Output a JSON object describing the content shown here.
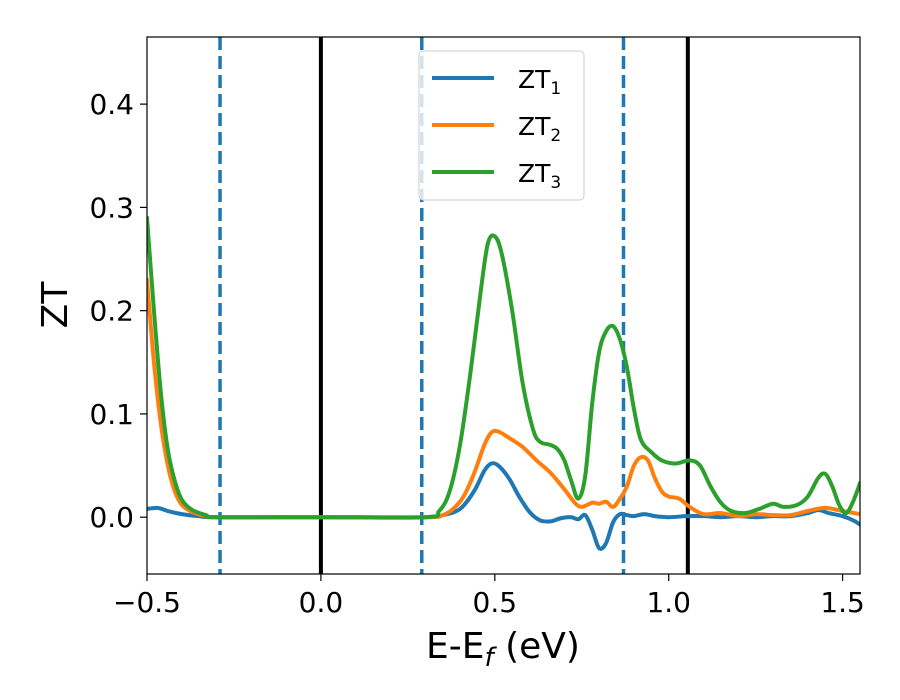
{
  "chart_data": {
    "type": "line",
    "xlabel": "E-E",
    "xlabel_sub": "f",
    "xlabel_unit": " (eV)",
    "ylabel": "ZT",
    "xlim": [
      -0.5,
      1.55
    ],
    "ylim": [
      -0.055,
      0.465
    ],
    "xticks": [
      -0.5,
      0.0,
      0.5,
      1.0,
      1.5
    ],
    "xtick_labels": [
      "−0.5",
      "0.0",
      "0.5",
      "1.0",
      "1.5"
    ],
    "yticks": [
      0.0,
      0.1,
      0.2,
      0.3,
      0.4
    ],
    "ytick_labels": [
      "0.0",
      "0.1",
      "0.2",
      "0.3",
      "0.4"
    ],
    "legend_position": "top-center",
    "vertical_lines": [
      {
        "x": -0.29,
        "style": "dashed",
        "color": "#1f77b4"
      },
      {
        "x": 0.0,
        "style": "solid",
        "color": "#000000"
      },
      {
        "x": 0.29,
        "style": "dashed",
        "color": "#1f77b4"
      },
      {
        "x": 0.87,
        "style": "dashed",
        "color": "#1f77b4"
      },
      {
        "x": 1.055,
        "style": "solid",
        "color": "#000000"
      }
    ],
    "series": [
      {
        "name": "ZT",
        "name_sub": "1",
        "color": "#1f77b4",
        "points": [
          [
            -0.5,
            0.008
          ],
          [
            -0.47,
            0.009
          ],
          [
            -0.44,
            0.006
          ],
          [
            -0.4,
            0.003
          ],
          [
            -0.35,
            0.001
          ],
          [
            -0.3,
            0.0
          ],
          [
            0.0,
            0.0
          ],
          [
            0.3,
            0.0
          ],
          [
            0.35,
            0.002
          ],
          [
            0.4,
            0.008
          ],
          [
            0.44,
            0.025
          ],
          [
            0.47,
            0.045
          ],
          [
            0.49,
            0.052
          ],
          [
            0.51,
            0.05
          ],
          [
            0.54,
            0.038
          ],
          [
            0.57,
            0.02
          ],
          [
            0.6,
            0.005
          ],
          [
            0.63,
            -0.003
          ],
          [
            0.66,
            -0.004
          ],
          [
            0.69,
            -0.001
          ],
          [
            0.72,
            0.0
          ],
          [
            0.74,
            -0.002
          ],
          [
            0.76,
            0.002
          ],
          [
            0.78,
            -0.012
          ],
          [
            0.8,
            -0.03
          ],
          [
            0.82,
            -0.025
          ],
          [
            0.84,
            -0.005
          ],
          [
            0.86,
            0.003
          ],
          [
            0.88,
            0.002
          ],
          [
            0.9,
            0.001
          ],
          [
            0.93,
            0.003
          ],
          [
            0.96,
            0.001
          ],
          [
            1.0,
            0.0
          ],
          [
            1.05,
            0.001
          ],
          [
            1.1,
            0.001
          ],
          [
            1.15,
            0.0
          ],
          [
            1.2,
            0.001
          ],
          [
            1.25,
            0.0
          ],
          [
            1.3,
            0.001
          ],
          [
            1.35,
            0.001
          ],
          [
            1.4,
            0.004
          ],
          [
            1.43,
            0.007
          ],
          [
            1.46,
            0.004
          ],
          [
            1.5,
            0.001
          ],
          [
            1.53,
            -0.003
          ],
          [
            1.55,
            -0.007
          ]
        ]
      },
      {
        "name": "ZT",
        "name_sub": "2",
        "color": "#ff7f0e",
        "points": [
          [
            -0.5,
            0.23
          ],
          [
            -0.48,
            0.15
          ],
          [
            -0.46,
            0.09
          ],
          [
            -0.44,
            0.05
          ],
          [
            -0.42,
            0.025
          ],
          [
            -0.4,
            0.012
          ],
          [
            -0.37,
            0.005
          ],
          [
            -0.33,
            0.001
          ],
          [
            -0.3,
            0.0
          ],
          [
            0.0,
            0.0
          ],
          [
            0.3,
            0.0
          ],
          [
            0.35,
            0.002
          ],
          [
            0.38,
            0.008
          ],
          [
            0.41,
            0.02
          ],
          [
            0.44,
            0.042
          ],
          [
            0.47,
            0.07
          ],
          [
            0.49,
            0.082
          ],
          [
            0.51,
            0.083
          ],
          [
            0.54,
            0.077
          ],
          [
            0.58,
            0.068
          ],
          [
            0.62,
            0.055
          ],
          [
            0.66,
            0.043
          ],
          [
            0.7,
            0.027
          ],
          [
            0.73,
            0.014
          ],
          [
            0.75,
            0.01
          ],
          [
            0.78,
            0.014
          ],
          [
            0.8,
            0.013
          ],
          [
            0.82,
            0.015
          ],
          [
            0.84,
            0.01
          ],
          [
            0.86,
            0.018
          ],
          [
            0.88,
            0.03
          ],
          [
            0.9,
            0.05
          ],
          [
            0.92,
            0.058
          ],
          [
            0.94,
            0.055
          ],
          [
            0.96,
            0.038
          ],
          [
            0.98,
            0.025
          ],
          [
            1.0,
            0.02
          ],
          [
            1.03,
            0.018
          ],
          [
            1.06,
            0.01
          ],
          [
            1.1,
            0.003
          ],
          [
            1.15,
            0.004
          ],
          [
            1.2,
            0.001
          ],
          [
            1.25,
            0.003
          ],
          [
            1.3,
            0.002
          ],
          [
            1.35,
            0.002
          ],
          [
            1.4,
            0.006
          ],
          [
            1.45,
            0.009
          ],
          [
            1.5,
            0.006
          ],
          [
            1.55,
            0.003
          ]
        ]
      },
      {
        "name": "ZT",
        "name_sub": "3",
        "color": "#2ca02c",
        "points": [
          [
            -0.5,
            0.29
          ],
          [
            -0.48,
            0.2
          ],
          [
            -0.46,
            0.12
          ],
          [
            -0.44,
            0.065
          ],
          [
            -0.42,
            0.035
          ],
          [
            -0.4,
            0.017
          ],
          [
            -0.37,
            0.007
          ],
          [
            -0.33,
            0.002
          ],
          [
            -0.3,
            0.0
          ],
          [
            0.0,
            0.0
          ],
          [
            0.3,
            0.0
          ],
          [
            0.34,
            0.006
          ],
          [
            0.37,
            0.025
          ],
          [
            0.4,
            0.07
          ],
          [
            0.43,
            0.14
          ],
          [
            0.46,
            0.22
          ],
          [
            0.48,
            0.265
          ],
          [
            0.5,
            0.272
          ],
          [
            0.52,
            0.255
          ],
          [
            0.55,
            0.2
          ],
          [
            0.58,
            0.13
          ],
          [
            0.61,
            0.085
          ],
          [
            0.63,
            0.073
          ],
          [
            0.66,
            0.07
          ],
          [
            0.68,
            0.066
          ],
          [
            0.7,
            0.055
          ],
          [
            0.72,
            0.035
          ],
          [
            0.74,
            0.018
          ],
          [
            0.76,
            0.04
          ],
          [
            0.78,
            0.11
          ],
          [
            0.8,
            0.16
          ],
          [
            0.82,
            0.18
          ],
          [
            0.84,
            0.185
          ],
          [
            0.86,
            0.172
          ],
          [
            0.88,
            0.145
          ],
          [
            0.9,
            0.105
          ],
          [
            0.92,
            0.075
          ],
          [
            0.95,
            0.063
          ],
          [
            0.98,
            0.055
          ],
          [
            1.02,
            0.052
          ],
          [
            1.06,
            0.055
          ],
          [
            1.09,
            0.05
          ],
          [
            1.12,
            0.03
          ],
          [
            1.15,
            0.014
          ],
          [
            1.18,
            0.006
          ],
          [
            1.22,
            0.004
          ],
          [
            1.26,
            0.008
          ],
          [
            1.3,
            0.013
          ],
          [
            1.33,
            0.01
          ],
          [
            1.37,
            0.012
          ],
          [
            1.4,
            0.02
          ],
          [
            1.43,
            0.038
          ],
          [
            1.45,
            0.042
          ],
          [
            1.47,
            0.03
          ],
          [
            1.49,
            0.012
          ],
          [
            1.51,
            0.004
          ],
          [
            1.53,
            0.015
          ],
          [
            1.55,
            0.033
          ]
        ]
      }
    ]
  }
}
